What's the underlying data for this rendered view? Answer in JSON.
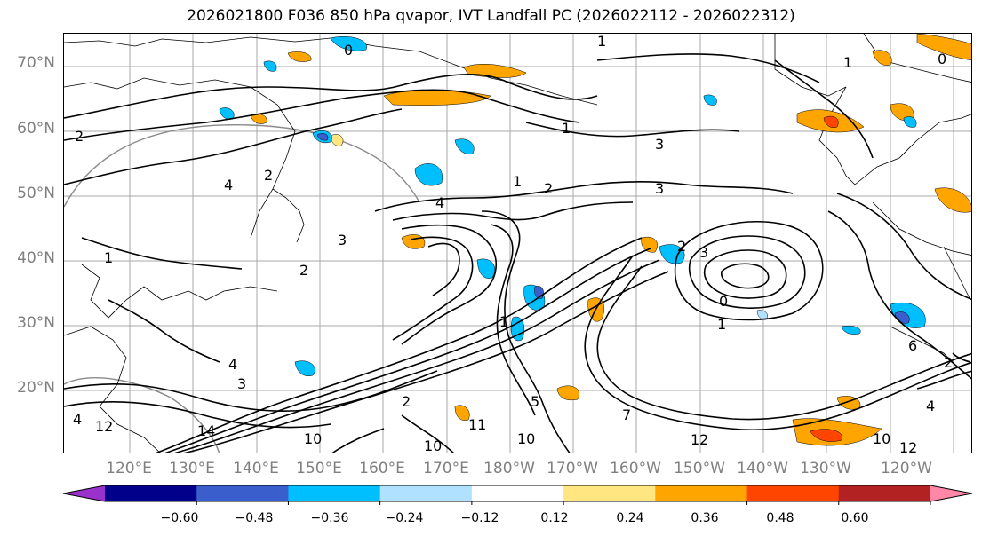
{
  "title": "2026021800 F036 850 hPa qvapor, IVT Landfall PC (2026022112 - 2026022312)",
  "latitude_labels": [
    "70°N",
    "60°N",
    "50°N",
    "40°N",
    "30°N",
    "20°N"
  ],
  "longitude_labels": [
    "120°E",
    "130°E",
    "140°E",
    "150°E",
    "160°E",
    "170°E",
    "180°W",
    "170°W",
    "160°W",
    "150°W",
    "140°W",
    "130°W",
    "120°W"
  ],
  "contour_labels": [
    "1",
    "0",
    "1",
    "2",
    "1",
    "2",
    "1",
    "2",
    "4",
    "3",
    "2",
    "3",
    "0",
    "1",
    "3",
    "4",
    "2",
    "3",
    "1",
    "6",
    "4",
    "4",
    "5",
    "10",
    "7",
    "12",
    "14",
    "10",
    "11",
    "12",
    "10",
    "12",
    "10",
    "4",
    "0",
    "2",
    "3",
    "1",
    "2"
  ],
  "colorbar": {
    "colors": [
      "#9932cc",
      "#00008b",
      "#3a5fcd",
      "#00bfff",
      "#b0e2ff",
      "#ffffff",
      "#ffe680",
      "#ffa500",
      "#ff4500",
      "#b22222",
      "#ff88a8"
    ],
    "tick_labels": [
      "−0.60",
      "−0.48",
      "−0.36",
      "−0.24",
      "−0.12",
      "0.12",
      "0.24",
      "0.36",
      "0.48",
      "0.60"
    ]
  }
}
